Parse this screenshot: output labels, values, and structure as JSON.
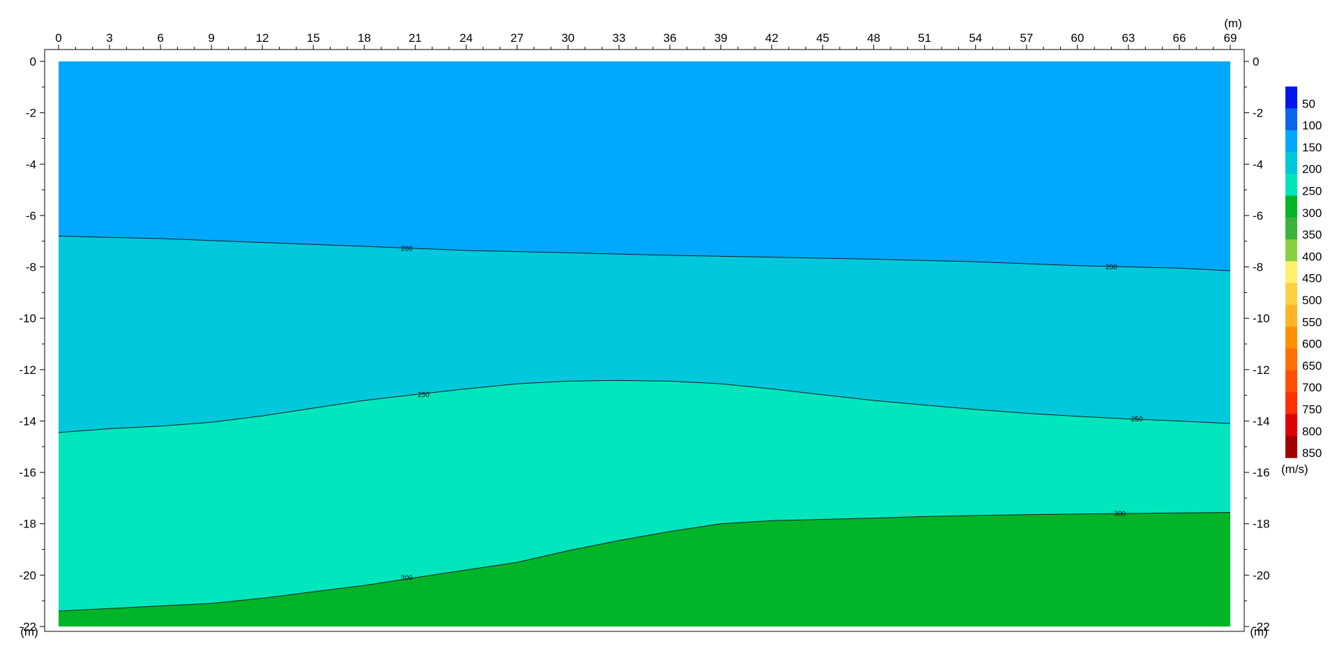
{
  "chart_data": {
    "type": "heatmap",
    "title": "",
    "x_unit": "(m)",
    "y_unit": "(m)",
    "xlim": [
      0,
      69
    ],
    "ylim": [
      -22,
      0
    ],
    "x_ticks": [
      0,
      3,
      6,
      9,
      12,
      15,
      18,
      21,
      24,
      27,
      30,
      33,
      36,
      39,
      42,
      45,
      48,
      51,
      54,
      57,
      60,
      63,
      66,
      69
    ],
    "y_ticks": [
      0,
      -2,
      -4,
      -6,
      -8,
      -10,
      -12,
      -14,
      -16,
      -18,
      -20,
      -22
    ],
    "colorbar": {
      "unit": "(m/s)",
      "levels": [
        {
          "label": "50",
          "color": "#0018f0"
        },
        {
          "label": "100",
          "color": "#0a64ec"
        },
        {
          "label": "150",
          "color": "#00a8ff"
        },
        {
          "label": "200",
          "color": "#00c8dc"
        },
        {
          "label": "250",
          "color": "#00e6bc"
        },
        {
          "label": "300",
          "color": "#00b428"
        },
        {
          "label": "350",
          "color": "#3cb43c"
        },
        {
          "label": "400",
          "color": "#88d040"
        },
        {
          "label": "450",
          "color": "#fff070"
        },
        {
          "label": "500",
          "color": "#ffd040"
        },
        {
          "label": "550",
          "color": "#ffb428"
        },
        {
          "label": "600",
          "color": "#ff9000"
        },
        {
          "label": "650",
          "color": "#ff7000"
        },
        {
          "label": "700",
          "color": "#ff5000"
        },
        {
          "label": "750",
          "color": "#ff3000"
        },
        {
          "label": "800",
          "color": "#e00000"
        },
        {
          "label": "850",
          "color": "#a00000"
        }
      ]
    },
    "regions": [
      {
        "name": "150-200",
        "color": "#00a8ff"
      },
      {
        "name": "200-250",
        "color": "#00c8dc"
      },
      {
        "name": "250-300",
        "color": "#00e6bc"
      },
      {
        "name": "300-350",
        "color": "#00b428"
      }
    ],
    "contours": [
      {
        "level": "200",
        "points": [
          [
            0,
            -6.8
          ],
          [
            6,
            -6.9
          ],
          [
            12,
            -7.05
          ],
          [
            18,
            -7.2
          ],
          [
            21,
            -7.28
          ],
          [
            24,
            -7.36
          ],
          [
            30,
            -7.45
          ],
          [
            36,
            -7.55
          ],
          [
            42,
            -7.62
          ],
          [
            48,
            -7.7
          ],
          [
            54,
            -7.8
          ],
          [
            60,
            -7.95
          ],
          [
            63,
            -8.0
          ],
          [
            66,
            -8.05
          ],
          [
            69,
            -8.15
          ]
        ],
        "labels": [
          [
            20.5,
            -7.28
          ],
          [
            62,
            -8.0
          ]
        ]
      },
      {
        "level": "250",
        "points": [
          [
            0,
            -14.45
          ],
          [
            3,
            -14.3
          ],
          [
            6,
            -14.2
          ],
          [
            9,
            -14.05
          ],
          [
            12,
            -13.8
          ],
          [
            15,
            -13.5
          ],
          [
            18,
            -13.2
          ],
          [
            21,
            -12.97
          ],
          [
            24,
            -12.75
          ],
          [
            27,
            -12.55
          ],
          [
            30,
            -12.45
          ],
          [
            33,
            -12.42
          ],
          [
            36,
            -12.45
          ],
          [
            39,
            -12.55
          ],
          [
            42,
            -12.75
          ],
          [
            45,
            -12.98
          ],
          [
            48,
            -13.2
          ],
          [
            51,
            -13.38
          ],
          [
            54,
            -13.55
          ],
          [
            57,
            -13.7
          ],
          [
            60,
            -13.82
          ],
          [
            63,
            -13.92
          ],
          [
            66,
            -14.0
          ],
          [
            69,
            -14.1
          ]
        ],
        "labels": [
          [
            21.5,
            -12.97
          ],
          [
            63.5,
            -13.92
          ]
        ]
      },
      {
        "level": "300",
        "points": [
          [
            0,
            -21.4
          ],
          [
            3,
            -21.3
          ],
          [
            6,
            -21.2
          ],
          [
            9,
            -21.1
          ],
          [
            12,
            -20.9
          ],
          [
            15,
            -20.65
          ],
          [
            18,
            -20.4
          ],
          [
            21,
            -20.1
          ],
          [
            24,
            -19.8
          ],
          [
            27,
            -19.5
          ],
          [
            30,
            -19.05
          ],
          [
            33,
            -18.65
          ],
          [
            36,
            -18.3
          ],
          [
            39,
            -18.0
          ],
          [
            42,
            -17.88
          ],
          [
            45,
            -17.83
          ],
          [
            48,
            -17.78
          ],
          [
            51,
            -17.72
          ],
          [
            54,
            -17.68
          ],
          [
            57,
            -17.65
          ],
          [
            60,
            -17.62
          ],
          [
            63,
            -17.6
          ],
          [
            66,
            -17.58
          ],
          [
            69,
            -17.56
          ]
        ],
        "labels": [
          [
            20.5,
            -20.1
          ],
          [
            62.5,
            -17.6
          ]
        ]
      }
    ]
  }
}
